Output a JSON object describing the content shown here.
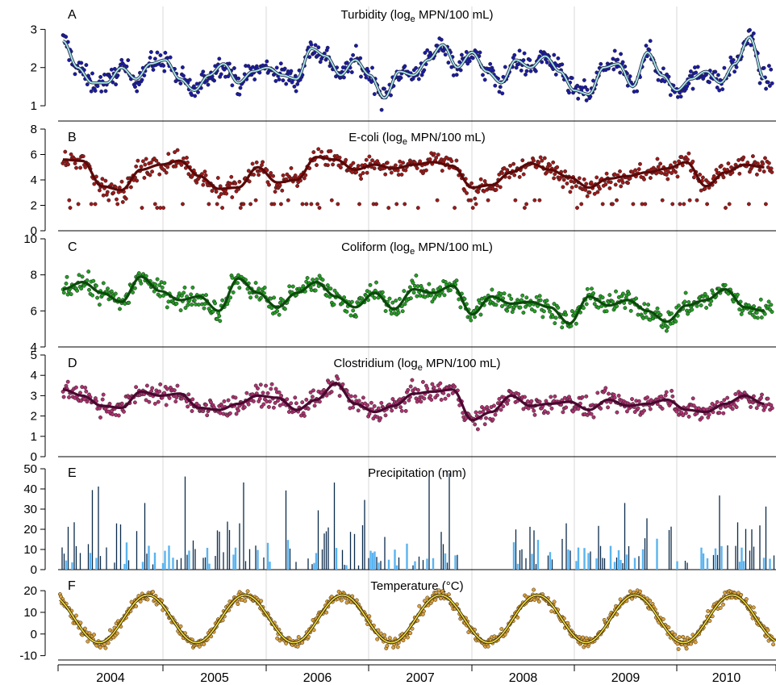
{
  "figure": {
    "years": [
      "2004",
      "2005",
      "2006",
      "2007",
      "2008",
      "2009",
      "2010"
    ]
  },
  "chart_data": [
    {
      "panel": "A",
      "type": "scatter",
      "title": "Turbidity (log",
      "title_sub": "e",
      "title_tail": " MPN/100 mL)",
      "ylim": [
        0.6,
        3.6
      ],
      "yticks": [
        "1",
        "2",
        "3"
      ],
      "point_color": "#1a1aa8",
      "line_color": "#a8ece4",
      "line_outline": "#2a2a5a",
      "smooth": {
        "x": [
          2003.6,
          2003.75,
          2003.9,
          2004.05,
          2004.2,
          2004.35,
          2004.5,
          2004.65,
          2004.8,
          2004.95,
          2005.1,
          2005.25,
          2005.4,
          2005.55,
          2005.7,
          2005.85,
          2006.0,
          2006.15,
          2006.3,
          2006.45,
          2006.6,
          2006.75,
          2006.9,
          2007.05,
          2007.2,
          2007.35,
          2007.5,
          2007.65,
          2007.8,
          2007.95,
          2008.1,
          2008.25,
          2008.4,
          2008.55,
          2008.7,
          2008.85,
          2009.0,
          2009.15,
          2009.3,
          2009.45,
          2009.6,
          2009.75,
          2009.9,
          2010.05,
          2010.2,
          2010.35,
          2010.5,
          2010.65,
          2010.8
        ],
        "y": [
          2.7,
          2.0,
          1.6,
          1.6,
          2.0,
          1.7,
          2.1,
          2.2,
          1.7,
          1.4,
          1.8,
          2.1,
          1.6,
          1.9,
          2.0,
          1.8,
          1.7,
          2.5,
          2.3,
          1.8,
          2.2,
          1.8,
          1.2,
          1.9,
          1.8,
          2.2,
          2.6,
          2.0,
          2.4,
          1.9,
          1.6,
          2.2,
          2.0,
          2.3,
          1.9,
          1.4,
          1.3,
          2.0,
          2.1,
          1.5,
          2.4,
          1.8,
          1.4,
          1.7,
          1.9,
          1.6,
          2.1,
          2.8,
          1.7
        ]
      }
    },
    {
      "panel": "B",
      "type": "scatter",
      "title": "E-coli (log",
      "title_sub": "e",
      "title_tail": " MPN/100 mL)",
      "ylim": [
        0,
        8
      ],
      "yticks": [
        "0",
        "2",
        "4",
        "6",
        "8"
      ],
      "point_color": "#a01818",
      "line_color": "#5a0808",
      "smooth": {
        "x": [
          2003.6,
          2003.8,
          2004.0,
          2004.2,
          2004.4,
          2004.6,
          2004.8,
          2005.0,
          2005.2,
          2005.4,
          2005.6,
          2005.8,
          2006.0,
          2006.2,
          2006.4,
          2006.6,
          2006.8,
          2007.0,
          2007.2,
          2007.4,
          2007.6,
          2007.8,
          2008.0,
          2008.2,
          2008.4,
          2008.6,
          2008.8,
          2009.0,
          2009.2,
          2009.4,
          2009.6,
          2009.8,
          2010.0,
          2010.2,
          2010.4,
          2010.6,
          2010.8
        ],
        "y": [
          5.6,
          5.5,
          3.5,
          3.2,
          4.8,
          5.2,
          5.5,
          4.3,
          3.3,
          3.4,
          5.0,
          3.8,
          4.0,
          5.8,
          5.6,
          4.8,
          5.2,
          4.9,
          5.2,
          5.4,
          5.1,
          3.4,
          3.6,
          4.6,
          5.3,
          4.8,
          4.2,
          3.4,
          4.1,
          4.3,
          4.6,
          4.9,
          5.4,
          3.5,
          4.6,
          5.2,
          5.0
        ]
      }
    },
    {
      "panel": "C",
      "type": "scatter",
      "title": "Coliform (log",
      "title_sub": "e",
      "title_tail": " MPN/100 mL)",
      "ylim": [
        4,
        10
      ],
      "yticks": [
        "4",
        "6",
        "8",
        "10"
      ],
      "point_color": "#22a022",
      "line_color": "#0a4a0a",
      "smooth": {
        "x": [
          2003.6,
          2003.8,
          2004.0,
          2004.2,
          2004.4,
          2004.6,
          2004.8,
          2005.0,
          2005.2,
          2005.4,
          2005.6,
          2005.8,
          2006.0,
          2006.2,
          2006.4,
          2006.6,
          2006.8,
          2007.0,
          2007.2,
          2007.4,
          2007.6,
          2007.8,
          2008.0,
          2008.2,
          2008.4,
          2008.6,
          2008.8,
          2009.0,
          2009.2,
          2009.4,
          2009.6,
          2009.8,
          2010.0,
          2010.2,
          2010.4,
          2010.6,
          2010.8
        ],
        "y": [
          7.2,
          7.6,
          7.0,
          6.5,
          7.9,
          7.1,
          6.6,
          6.8,
          6.0,
          7.8,
          7.0,
          6.2,
          7.0,
          7.6,
          6.8,
          6.2,
          7.0,
          6.1,
          7.2,
          7.0,
          7.4,
          5.8,
          6.8,
          6.4,
          6.5,
          6.2,
          5.3,
          6.8,
          6.3,
          6.6,
          6.0,
          5.4,
          6.3,
          6.6,
          7.2,
          6.2,
          6.0
        ]
      }
    },
    {
      "panel": "D",
      "type": "scatter",
      "title": "Clostridium (log",
      "title_sub": "e",
      "title_tail": " MPN/100 mL)",
      "ylim": [
        0,
        5
      ],
      "yticks": [
        "0",
        "1",
        "2",
        "3",
        "4",
        "5"
      ],
      "point_color": "#b03070",
      "line_color": "#4a0830",
      "smooth": {
        "x": [
          2003.6,
          2003.8,
          2004.0,
          2004.2,
          2004.4,
          2004.6,
          2004.8,
          2005.0,
          2005.2,
          2005.4,
          2005.6,
          2005.8,
          2006.0,
          2006.2,
          2006.4,
          2006.6,
          2006.8,
          2007.0,
          2007.2,
          2007.4,
          2007.6,
          2007.8,
          2008.0,
          2008.2,
          2008.4,
          2008.6,
          2008.8,
          2009.0,
          2009.2,
          2009.4,
          2009.6,
          2009.8,
          2010.0,
          2010.2,
          2010.4,
          2010.6,
          2010.8
        ],
        "y": [
          3.3,
          3.0,
          2.5,
          2.4,
          3.2,
          3.0,
          3.1,
          2.4,
          2.3,
          2.6,
          3.0,
          2.9,
          2.3,
          2.8,
          3.6,
          2.6,
          2.2,
          2.5,
          3.1,
          3.2,
          3.3,
          1.8,
          2.2,
          3.0,
          2.5,
          2.6,
          2.7,
          2.3,
          2.8,
          2.5,
          2.6,
          2.8,
          2.3,
          2.2,
          2.6,
          3.0,
          2.6
        ]
      }
    },
    {
      "panel": "E",
      "type": "bar",
      "title": "Precipitation (mm)",
      "ylim": [
        0,
        52
      ],
      "yticks": [
        "0",
        "10",
        "20",
        "30",
        "40",
        "50"
      ],
      "bar_color": "#0a2a4a",
      "area_color": "#5ab4f0"
    },
    {
      "panel": "F",
      "type": "scatter",
      "title": "Temperature (°C)",
      "ylim": [
        -12,
        26
      ],
      "yticks": [
        "-10",
        "0",
        "10",
        "20"
      ],
      "point_color": "#d8a040",
      "line_color": "#f0e040",
      "line_outline": "#3a2a0a"
    }
  ]
}
